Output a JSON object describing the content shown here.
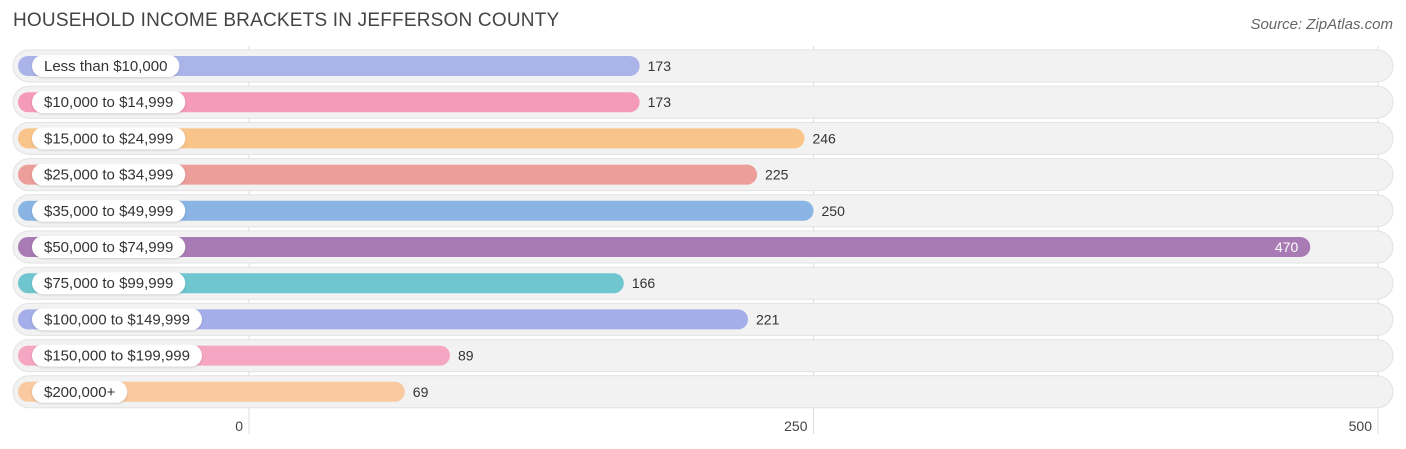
{
  "header": {
    "title": "HOUSEHOLD INCOME BRACKETS IN JEFFERSON COUNTY",
    "source": "Source: ZipAtlas.com"
  },
  "chart_data": {
    "type": "bar",
    "orientation": "horizontal",
    "categories": [
      "Less than $10,000",
      "$10,000 to $14,999",
      "$15,000 to $24,999",
      "$25,000 to $34,999",
      "$35,000 to $49,999",
      "$50,000 to $74,999",
      "$75,000 to $99,999",
      "$100,000 to $149,999",
      "$150,000 to $199,999",
      "$200,000+"
    ],
    "values": [
      173,
      173,
      246,
      225,
      250,
      470,
      166,
      221,
      89,
      69
    ],
    "colors": [
      "#aab4e8",
      "#f59ab8",
      "#f9c48a",
      "#ec9e9a",
      "#8ab4e4",
      "#a97bb5",
      "#6fc6ce",
      "#a5aee8",
      "#f5a6c2",
      "#f9c9a0"
    ],
    "xlim": [
      0,
      500
    ],
    "xticks": [
      "0",
      "250",
      "500"
    ],
    "grid": true
  }
}
